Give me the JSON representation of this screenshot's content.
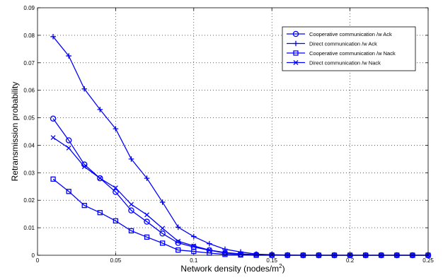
{
  "chart_data": {
    "type": "line",
    "title": "",
    "xlabel": "Network density (nodes/m",
    "xlabel_sup": "2",
    "xlabel_end": ")",
    "ylabel": "Retransmission probability",
    "xlim": [
      0,
      0.25
    ],
    "ylim": [
      0,
      0.09
    ],
    "x_ticks": [
      0,
      0.05,
      0.1,
      0.15,
      0.2,
      0.25
    ],
    "x_tick_labels": [
      "0",
      "0.05",
      "0.1",
      "0.15",
      "0.2",
      "0.25"
    ],
    "y_ticks": [
      0,
      0.01,
      0.02,
      0.03,
      0.04,
      0.05,
      0.06,
      0.07,
      0.08,
      0.09
    ],
    "y_tick_labels": [
      "0",
      "0.01",
      "0.02",
      "0.03",
      "0.04",
      "0.05",
      "0.06",
      "0.07",
      "0.08",
      "0.09"
    ],
    "grid": true,
    "legend_position": "top-right",
    "x": [
      0.01,
      0.02,
      0.03,
      0.04,
      0.05,
      0.06,
      0.07,
      0.08,
      0.09,
      0.1,
      0.11,
      0.12,
      0.13,
      0.14,
      0.15,
      0.16,
      0.17,
      0.18,
      0.19,
      0.2,
      0.21,
      0.22,
      0.23,
      0.24,
      0.25
    ],
    "series": [
      {
        "name": "Cooperative communication /w Ack",
        "marker": "circle",
        "color": "#0000ff",
        "values": [
          0.0497,
          0.0418,
          0.033,
          0.028,
          0.023,
          0.0163,
          0.0122,
          0.0079,
          0.0045,
          0.003,
          0.0018,
          0.0008,
          0.0004,
          0.0002,
          0.0001,
          0,
          0,
          0,
          0,
          0,
          0,
          0,
          0,
          0,
          0
        ]
      },
      {
        "name": "Direct communication /w Ack",
        "marker": "plus",
        "color": "#0000ff",
        "values": [
          0.0795,
          0.0725,
          0.0605,
          0.053,
          0.046,
          0.035,
          0.028,
          0.0193,
          0.0102,
          0.0068,
          0.0042,
          0.0022,
          0.0012,
          0.0004,
          0.0002,
          0.0001,
          0,
          0,
          0,
          0,
          0,
          0,
          0,
          0,
          0
        ]
      },
      {
        "name": "Cooperative communication /w Nack",
        "marker": "square",
        "color": "#0000ff",
        "values": [
          0.0277,
          0.0232,
          0.0181,
          0.0155,
          0.0125,
          0.0089,
          0.0066,
          0.0044,
          0.0019,
          0.0014,
          0.0008,
          0.0003,
          0.0001,
          0,
          0,
          0,
          0,
          0,
          0,
          0,
          0,
          0,
          0,
          0,
          0
        ]
      },
      {
        "name": "Direct communication /w Nack",
        "marker": "x",
        "color": "#0000ff",
        "values": [
          0.0428,
          0.039,
          0.0322,
          0.028,
          0.0245,
          0.0185,
          0.0147,
          0.0098,
          0.0051,
          0.0034,
          0.0019,
          0.001,
          0.0005,
          0.0002,
          0.0001,
          0,
          0,
          0,
          0,
          0,
          0,
          0,
          0,
          0,
          0
        ]
      }
    ]
  }
}
